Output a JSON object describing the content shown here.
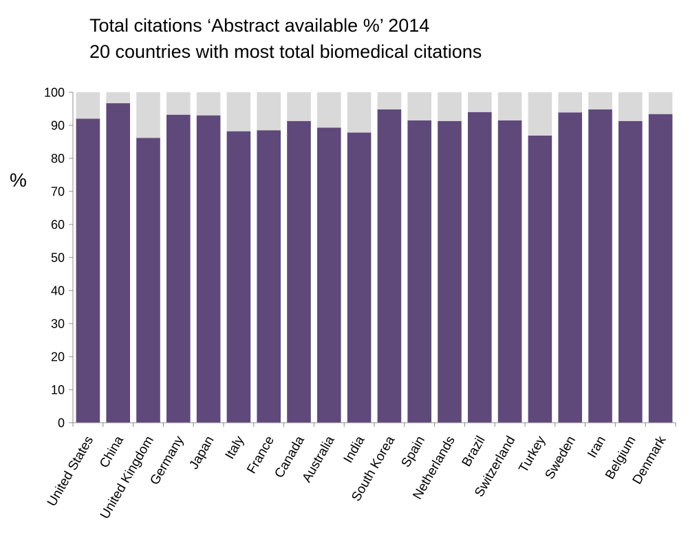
{
  "chart_data": {
    "type": "bar",
    "title": "Total citations ‘Abstract available %’ 2014",
    "subtitle": "20 countries with most total biomedical citations",
    "xlabel": "",
    "ylabel": "%",
    "ylim": [
      0,
      100
    ],
    "yticks": [
      "0",
      "10",
      "20",
      "30",
      "40",
      "50",
      "60",
      "70",
      "80",
      "90",
      "100"
    ],
    "grid": false,
    "stacked": true,
    "categories": [
      "United States",
      "China",
      "United Kingdom",
      "Germany",
      "Japan",
      "Italy",
      "France",
      "Canada",
      "Australia",
      "India",
      "South Korea",
      "Spain",
      "Netherlands",
      "Brazil",
      "Switzerland",
      "Turkey",
      "Sweden",
      "Iran",
      "Belgium",
      "Denmark"
    ],
    "series": [
      {
        "values": [
          92,
          96.7,
          86.2,
          93.2,
          93,
          88.2,
          88.5,
          91.3,
          89.3,
          87.8,
          94.8,
          91.5,
          91.3,
          94,
          91.5,
          86.9,
          93.9,
          94.8,
          91.3,
          93.4
        ],
        "color": "#5f497a"
      },
      {
        "values": [
          8,
          3.3,
          13.8,
          6.8,
          7,
          11.8,
          11.5,
          8.7,
          10.7,
          12.2,
          5.2,
          8.5,
          8.7,
          6,
          8.5,
          13.1,
          6.1,
          5.2,
          8.7,
          6.6
        ],
        "color": "#d9d9d9"
      }
    ]
  }
}
